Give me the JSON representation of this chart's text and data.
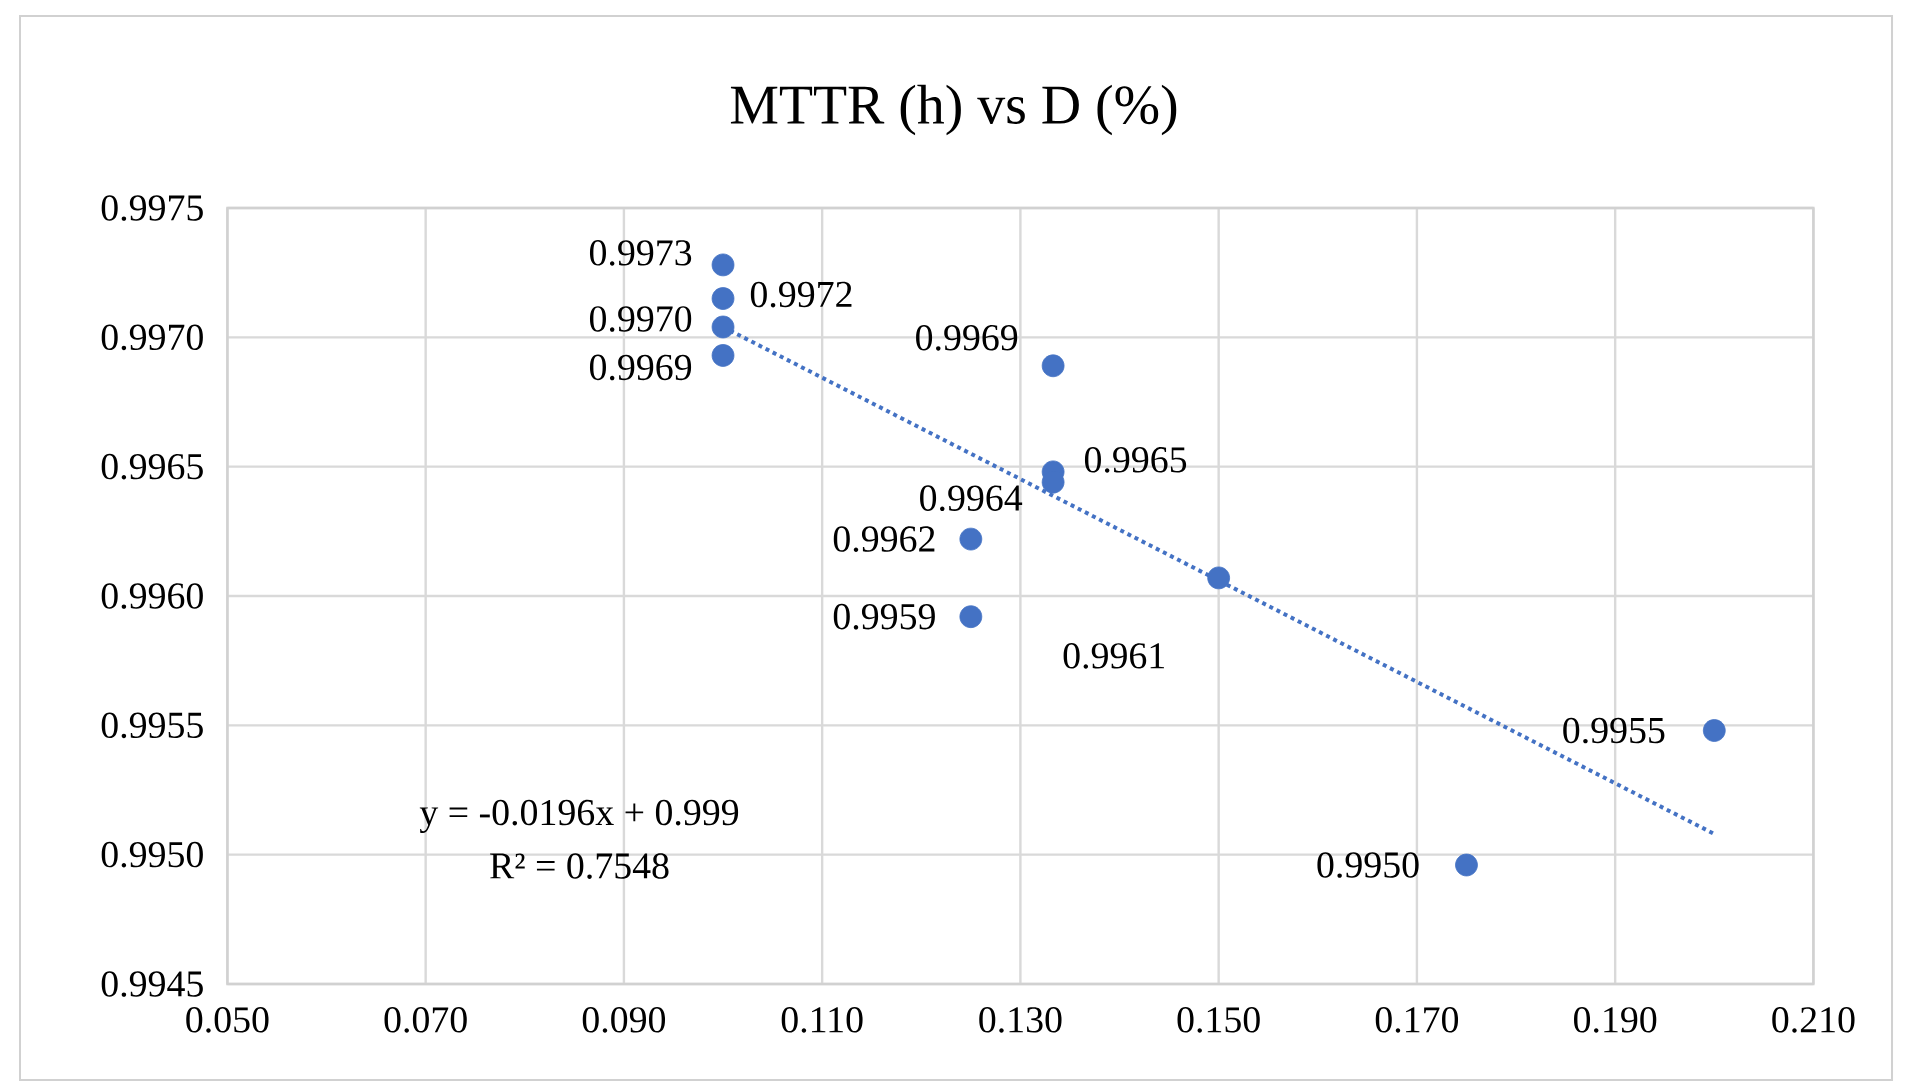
{
  "chart_data": {
    "type": "scatter",
    "title": "MTTR (h) vs D (%)",
    "grid": true,
    "xlim": [
      0.05,
      0.21
    ],
    "ylim": [
      0.9945,
      0.9975
    ],
    "xticks": [
      {
        "value": 0.05,
        "label": "0.050"
      },
      {
        "value": 0.07,
        "label": "0.070"
      },
      {
        "value": 0.09,
        "label": "0.090"
      },
      {
        "value": 0.11,
        "label": "0.110"
      },
      {
        "value": 0.13,
        "label": "0.130"
      },
      {
        "value": 0.15,
        "label": "0.150"
      },
      {
        "value": 0.17,
        "label": "0.170"
      },
      {
        "value": 0.19,
        "label": "0.190"
      },
      {
        "value": 0.21,
        "label": "0.210"
      }
    ],
    "yticks": [
      {
        "value": 0.9945,
        "label": "0.9945"
      },
      {
        "value": 0.995,
        "label": "0.9950"
      },
      {
        "value": 0.9955,
        "label": "0.9955"
      },
      {
        "value": 0.996,
        "label": "0.9960"
      },
      {
        "value": 0.9965,
        "label": "0.9965"
      },
      {
        "value": 0.997,
        "label": "0.9970"
      },
      {
        "value": 0.9975,
        "label": "0.9975"
      }
    ],
    "series": [
      {
        "type": "scatter",
        "marker": "circle",
        "color": "#4472c4",
        "x": [
          0.1,
          0.1,
          0.1,
          0.1,
          0.125,
          0.125,
          0.1333,
          0.1333,
          0.1333,
          0.15,
          0.175,
          0.2
        ],
        "values": [
          0.99728,
          0.99715,
          0.99704,
          0.99693,
          0.99622,
          0.99592,
          0.99689,
          0.99648,
          0.99644,
          0.99607,
          0.99496,
          0.99548
        ],
        "value_labels": [
          "0.9973",
          "0.9972",
          "0.9970",
          "0.9969",
          "0.9962",
          "0.9959",
          "0.9969",
          "0.9965",
          "0.9964",
          "0.9961",
          "0.9950",
          "0.9955"
        ]
      },
      {
        "type": "line",
        "color": "#4472c4",
        "x": [
          0.1,
          0.2
        ],
        "values": [
          0.99704,
          0.99508
        ],
        "line_style": "dotted",
        "marker": "none"
      }
    ],
    "annotations": [
      "y = -0.0196x + 0.999",
      "R² = 0.7548"
    ]
  }
}
